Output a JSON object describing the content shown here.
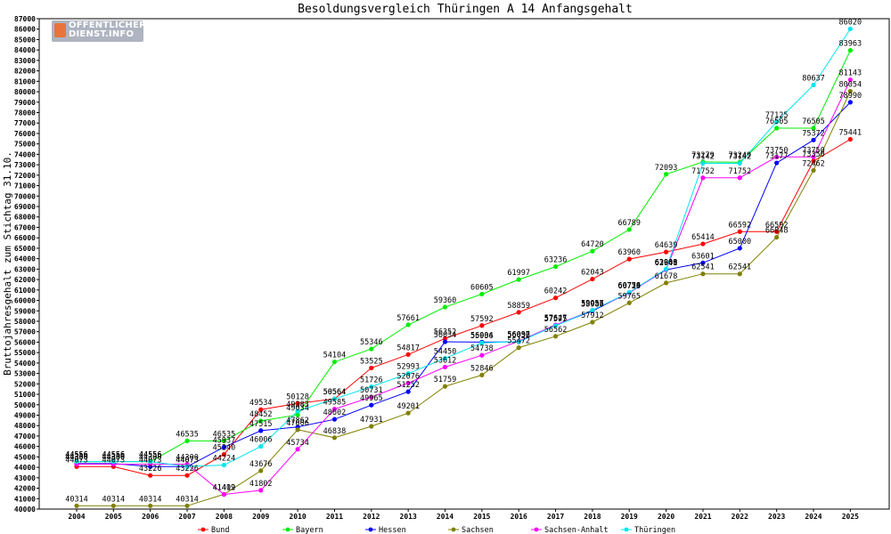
{
  "logo": {
    "line1": "ÖFFENTLICHER",
    "line2": "DIENST.INFO"
  },
  "chart_data": {
    "type": "line",
    "title": "Besoldungsvergleich Thüringen A 14 Anfangsgehalt",
    "xlabel": "",
    "ylabel": "Bruttojahresgehalt zum Stichtag 31.10.",
    "ylim": [
      40000,
      87000
    ],
    "ytick_step": 1000,
    "grid": false,
    "legend": "bottom",
    "x": [
      2004,
      2005,
      2006,
      2007,
      2008,
      2009,
      2010,
      2011,
      2012,
      2013,
      2014,
      2015,
      2016,
      2017,
      2018,
      2019,
      2020,
      2021,
      2022,
      2023,
      2024,
      2025
    ],
    "series": [
      {
        "name": "Bund",
        "color": "#ff0000",
        "values": [
          44073,
          44073,
          43226,
          43226,
          45240,
          49534,
          50128,
          50564,
          53525,
          54817,
          56352,
          57592,
          58859,
          60242,
          62043,
          63960,
          64639,
          65414,
          66592,
          66592,
          73350,
          75441
        ]
      },
      {
        "name": "Bayern",
        "color": "#00ee00",
        "values": [
          44556,
          44556,
          44556,
          46535,
          46535,
          48452,
          49034,
          54104,
          55346,
          57661,
          59360,
          60605,
          61997,
          63236,
          64720,
          66789,
          72093,
          73279,
          73249,
          76505,
          76505,
          83963
        ]
      },
      {
        "name": "Hessen",
        "color": "#0000ff",
        "values": [
          44356,
          44356,
          44073,
          44073,
          45937,
          47515,
          47862,
          48602,
          49965,
          51252,
          56034,
          56004,
          56032,
          57627,
          58986,
          60759,
          62941,
          63601,
          65000,
          73177,
          75372,
          78990
        ]
      },
      {
        "name": "Sachsen",
        "color": "#808000",
        "values": [
          40314,
          40314,
          40314,
          40314,
          41419,
          43676,
          47606,
          46838,
          47931,
          49201,
          51759,
          52846,
          55472,
          56562,
          57912,
          59765,
          61678,
          62541,
          62541,
          66048,
          72462,
          80054
        ]
      },
      {
        "name": "Sachsen-Anhalt",
        "color": "#ff00ff",
        "values": [
          44300,
          44300,
          44300,
          44300,
          41402,
          41802,
          45734,
          49585,
          50731,
          52076,
          53612,
          54738,
          56097,
          57647,
          59055,
          60726,
          62968,
          71752,
          71752,
          73750,
          73750,
          81143
        ]
      },
      {
        "name": "Thüringen",
        "color": "#00e5ee",
        "values": [
          44556,
          44556,
          44556,
          44073,
          44224,
          46006,
          49383,
          50564,
          51726,
          52993,
          54450,
          55936,
          56056,
          57575,
          59057,
          60774,
          63009,
          73142,
          73142,
          77125,
          80637,
          86020
        ]
      }
    ]
  }
}
